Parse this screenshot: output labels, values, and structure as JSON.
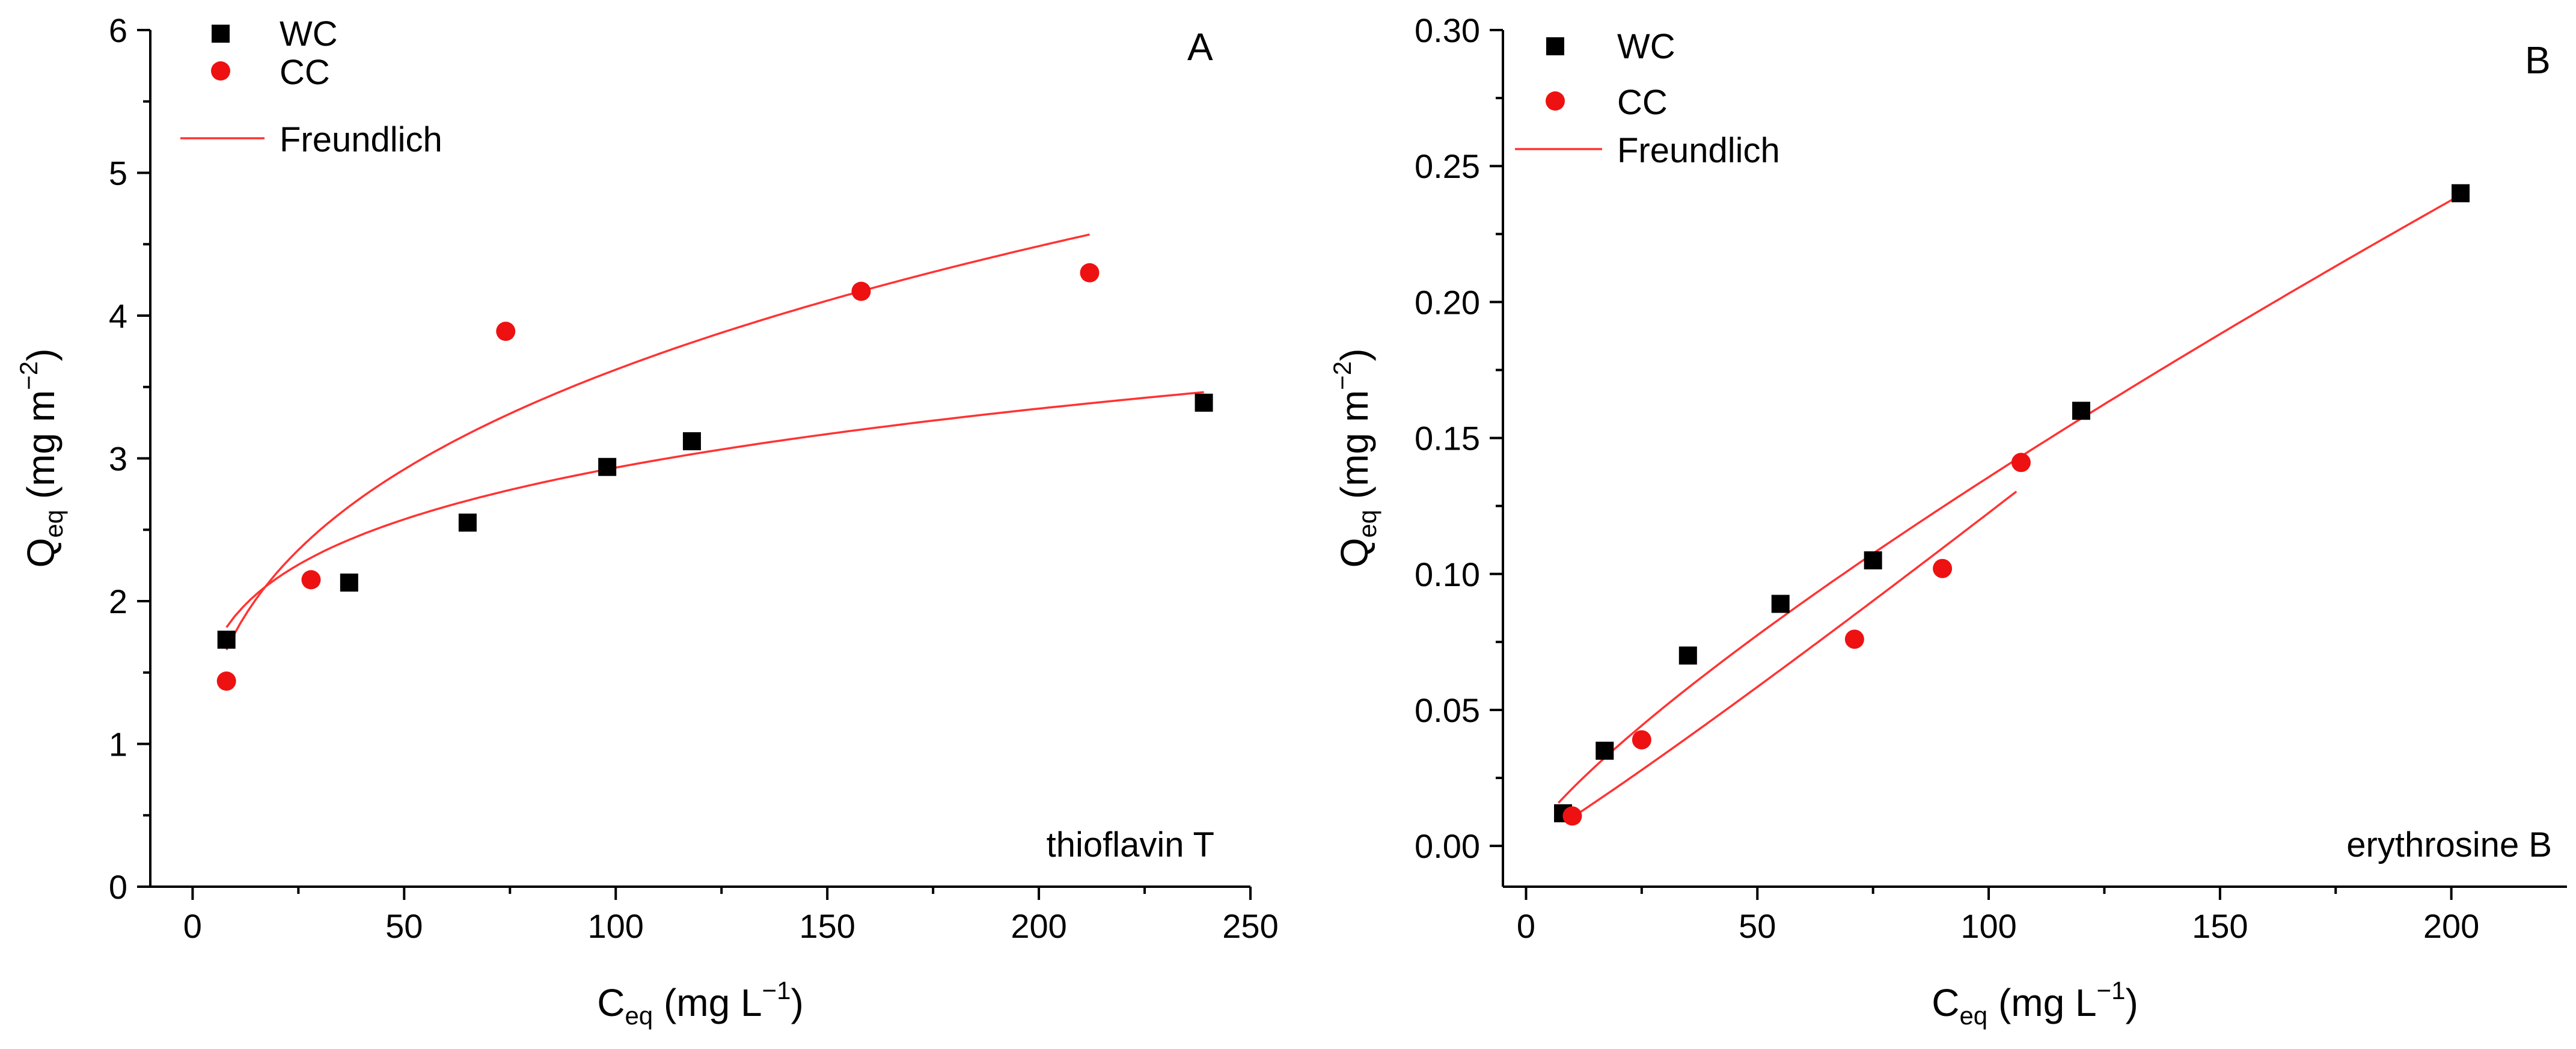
{
  "chart_data": [
    {
      "type": "scatter",
      "panel_label": "A",
      "annotation": "thioflavin T",
      "xlabel": {
        "main": "C",
        "sub": "eq",
        "units_pre": " (mg L",
        "units_sup": "−1",
        "units_post": ")"
      },
      "ylabel": {
        "main": "Q",
        "sub": "eq",
        "units_pre": " (mg m",
        "units_sup": "−2",
        "units_post": ")"
      },
      "xlim": [
        -10,
        250
      ],
      "ylim": [
        0,
        6
      ],
      "xticks": [
        0,
        50,
        100,
        150,
        200,
        250
      ],
      "yticks": [
        0,
        1,
        2,
        3,
        4,
        5,
        6
      ],
      "legend": [
        {
          "label": "WC",
          "marker": "square",
          "color": "#000000"
        },
        {
          "label": "CC",
          "marker": "circle",
          "color": "#ee1111"
        },
        {
          "label": "Freundlich",
          "marker": "line",
          "color": "#ff3333"
        }
      ],
      "series": [
        {
          "name": "WC",
          "marker": "square",
          "color": "#000000",
          "x": [
            8,
            37,
            65,
            98,
            118,
            239
          ],
          "y": [
            1.73,
            2.13,
            2.55,
            2.94,
            3.12,
            3.39
          ]
        },
        {
          "name": "CC",
          "marker": "circle",
          "color": "#ee1111",
          "x": [
            8,
            28,
            74,
            158,
            212
          ],
          "y": [
            1.44,
            2.15,
            3.89,
            4.17,
            4.3
          ]
        }
      ],
      "fits": [
        {
          "name": "Freundlich WC",
          "model": "freundlich",
          "K": 1.2236,
          "n": 0.19,
          "x_range": [
            8,
            239
          ],
          "color": "#ff3333"
        },
        {
          "name": "Freundlich CC",
          "model": "freundlich",
          "K": 0.8723,
          "n": 0.3091,
          "x_range": [
            8,
            212
          ],
          "color": "#ff3333"
        }
      ]
    },
    {
      "type": "scatter",
      "panel_label": "B",
      "annotation": "erythrosine B",
      "xlabel": {
        "main": "C",
        "sub": "eq",
        "units_pre": " (mg L",
        "units_sup": "−1",
        "units_post": ")"
      },
      "ylabel": {
        "main": "Q",
        "sub": "eq",
        "units_pre": " (mg m",
        "units_sup": "−2",
        "units_post": ")"
      },
      "xlim": [
        -5,
        225
      ],
      "ylim": [
        -0.015,
        0.3
      ],
      "xticks": [
        0,
        50,
        100,
        150,
        200
      ],
      "yticks": [
        0.0,
        0.05,
        0.1,
        0.15,
        0.2,
        0.25,
        0.3
      ],
      "ytick_labels": [
        "0.00",
        "0.05",
        "0.10",
        "0.15",
        "0.20",
        "0.25",
        "0.30"
      ],
      "legend": [
        {
          "label": "WC",
          "marker": "square",
          "color": "#000000"
        },
        {
          "label": "CC",
          "marker": "circle",
          "color": "#ee1111"
        },
        {
          "label": "Freundlich",
          "marker": "line",
          "color": "#ff3333"
        }
      ],
      "series": [
        {
          "name": "WC",
          "marker": "square",
          "color": "#000000",
          "x": [
            8,
            17,
            35,
            55,
            75,
            120,
            202
          ],
          "y": [
            0.012,
            0.035,
            0.07,
            0.089,
            0.105,
            0.16,
            0.24
          ]
        },
        {
          "name": "CC",
          "marker": "circle",
          "color": "#ee1111",
          "x": [
            10,
            25,
            71,
            90,
            107
          ],
          "y": [
            0.011,
            0.039,
            0.076,
            0.102,
            0.141
          ]
        }
      ],
      "fits": [
        {
          "name": "Freundlich WC",
          "model": "freundlich",
          "K": 0.003285,
          "n": 0.8079,
          "x_range": [
            7,
            202
          ],
          "color": "#ff3333"
        },
        {
          "name": "Freundlich CC",
          "model": "freundlich",
          "K": 0.0009,
          "n": 1.0669,
          "x_range": [
            10,
            106
          ],
          "color": "#ff3333"
        }
      ]
    }
  ]
}
